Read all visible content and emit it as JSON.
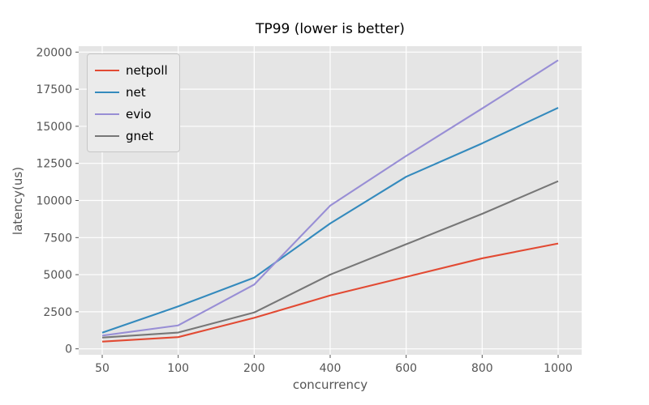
{
  "chart_data": {
    "type": "line",
    "title": "TP99 (lower is better)",
    "xlabel": "concurrency",
    "ylabel": "latency(us)",
    "x_categories": [
      "50",
      "100",
      "200",
      "400",
      "600",
      "800",
      "1000"
    ],
    "y_ticks": [
      "0",
      "2500",
      "5000",
      "7500",
      "10000",
      "12500",
      "15000",
      "17500",
      "20000"
    ],
    "y_tick_values": [
      0,
      2500,
      5000,
      7500,
      10000,
      12500,
      15000,
      17500,
      20000
    ],
    "ylim": [
      -400,
      20400
    ],
    "grid": true,
    "legend_position": "upper-left",
    "series": [
      {
        "name": "netpoll",
        "color": "#E24A33",
        "values": [
          490,
          790,
          2090,
          3600,
          4850,
          6100,
          7100
        ]
      },
      {
        "name": "net",
        "color": "#348ABD",
        "values": [
          1090,
          2860,
          4800,
          8450,
          11600,
          13850,
          16250
        ]
      },
      {
        "name": "evio",
        "color": "#988ED5",
        "values": [
          890,
          1580,
          4330,
          9650,
          13000,
          16200,
          19450
        ]
      },
      {
        "name": "gnet",
        "color": "#777777",
        "values": [
          760,
          1100,
          2450,
          5000,
          7050,
          9100,
          11300
        ]
      }
    ],
    "colors": {
      "figure_background": "#FFFFFF",
      "plot_background": "#E5E5E5",
      "grid": "#FFFFFF",
      "tick_text": "#555555",
      "tick_mark": "#555555",
      "title_text": "#000000"
    }
  }
}
